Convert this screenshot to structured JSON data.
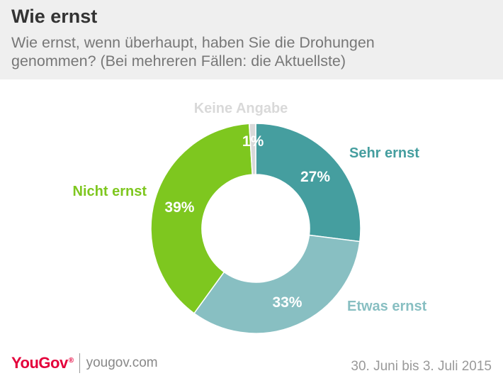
{
  "header": {
    "title": "Wie ernst",
    "subtitle_line1": "Wie ernst, wenn überhaupt, haben Sie die Drohungen",
    "subtitle_line2": "genommen? (Bei mehreren Fällen: die Aktuellste)"
  },
  "chart_data": {
    "type": "pie",
    "variant": "donut",
    "slices": [
      {
        "name": "Sehr ernst",
        "value": 27,
        "label": "27%",
        "color": "#459e9f"
      },
      {
        "name": "Etwas ernst",
        "value": 33,
        "label": "33%",
        "color": "#88bfc2"
      },
      {
        "name": "Nicht ernst",
        "value": 39,
        "label": "39%",
        "color": "#7ec71f"
      },
      {
        "name": "Keine Angabe",
        "value": 1,
        "label": "1%",
        "color": "#d9d9d9"
      }
    ]
  },
  "footer": {
    "logo": "YouGov",
    "logo_mark": "®",
    "site": "yougov.com",
    "date": "30. Juni bis 3. Juli 2015"
  },
  "label_colors": {
    "Sehr ernst": "#459e9f",
    "Etwas ernst": "#88bfc2",
    "Nicht ernst": "#7ec71f",
    "Keine Angabe": "#d9d9d9"
  }
}
